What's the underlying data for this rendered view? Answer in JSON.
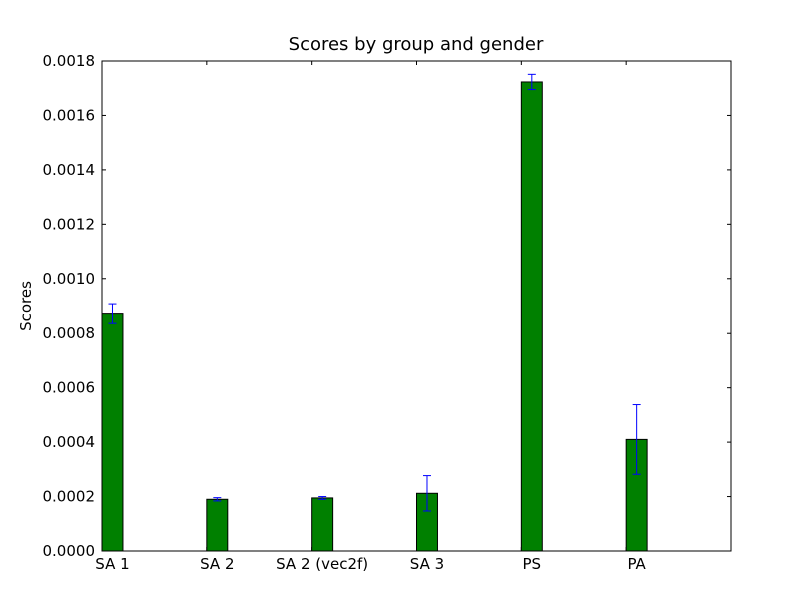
{
  "chart_data": {
    "type": "bar",
    "title": "Scores by group and gender",
    "xlabel": "",
    "ylabel": "Scores",
    "categories": [
      "SA 1",
      "SA 2",
      "SA 2 (vec2f)",
      "SA 3",
      "PS",
      "PA"
    ],
    "series": [
      {
        "values": [
          0.000872,
          0.00019,
          0.000195,
          0.000212,
          0.001723,
          0.00041
        ],
        "errors": [
          3.5e-05,
          6e-06,
          5e-06,
          6.5e-05,
          2.8e-05,
          0.000128
        ],
        "color": "#008000"
      }
    ],
    "error_color": "#0000ff",
    "ylim": [
      0,
      0.0018
    ],
    "xlim": [
      0,
      6
    ],
    "yticks": [
      0,
      0.0002,
      0.0004,
      0.0006,
      0.0008,
      0.001,
      0.0012,
      0.0014,
      0.0016,
      0.0018
    ],
    "ytick_labels": [
      "0.0000",
      "0.0002",
      "0.0004",
      "0.0006",
      "0.0008",
      "0.0010",
      "0.0012",
      "0.0014",
      "0.0016",
      "0.0018"
    ],
    "bar_width": 0.2,
    "grid": false,
    "legend": "none"
  }
}
